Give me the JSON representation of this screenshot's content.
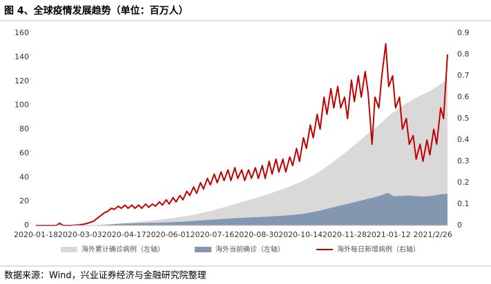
{
  "chart_data": {
    "type": "line",
    "title": "图 4、全球疫情发展趋势（单位：百万人）",
    "source": "数据来源：Wind，兴业证券经济与金融研究院整理",
    "grid": false,
    "legend": "bottom",
    "xlim": [
      "2020-01-18",
      "2021-03-13"
    ],
    "xticks": [
      "2020-01-18",
      "2020-03-03",
      "2020-04-17",
      "2020-06-01",
      "2020-07-16",
      "2020-08-30",
      "2020-10-14",
      "2020-11-28",
      "2021-01-12",
      {
        "value": "2021-02-26",
        "label": "2021/2/26"
      }
    ],
    "ylim": [
      0,
      160
    ],
    "yticks": [
      0,
      20,
      40,
      60,
      80,
      100,
      120,
      140,
      160
    ],
    "y2lim": [
      0,
      0.9
    ],
    "y2ticks": [
      0,
      0.1,
      0.2,
      0.3,
      0.4,
      0.5,
      0.6,
      0.7,
      0.8,
      0.9
    ],
    "x": [
      "2020-01-18",
      "2020-01-21",
      "2020-01-25",
      "2020-01-28",
      "2020-02-01",
      "2020-02-04",
      "2020-02-08",
      "2020-02-11",
      "2020-02-15",
      "2020-02-18",
      "2020-02-22",
      "2020-02-25",
      "2020-02-29",
      "2020-03-03",
      "2020-03-07",
      "2020-03-10",
      "2020-03-14",
      "2020-03-17",
      "2020-03-21",
      "2020-03-24",
      "2020-03-28",
      "2020-03-31",
      "2020-04-04",
      "2020-04-07",
      "2020-04-11",
      "2020-04-14",
      "2020-04-18",
      "2020-04-21",
      "2020-04-25",
      "2020-04-28",
      "2020-05-02",
      "2020-05-05",
      "2020-05-09",
      "2020-05-12",
      "2020-05-16",
      "2020-05-19",
      "2020-05-23",
      "2020-05-26",
      "2020-05-30",
      "2020-06-02",
      "2020-06-06",
      "2020-06-09",
      "2020-06-13",
      "2020-06-16",
      "2020-06-20",
      "2020-06-23",
      "2020-06-27",
      "2020-06-30",
      "2020-07-04",
      "2020-07-07",
      "2020-07-11",
      "2020-07-14",
      "2020-07-18",
      "2020-07-21",
      "2020-07-25",
      "2020-07-28",
      "2020-08-01",
      "2020-08-04",
      "2020-08-08",
      "2020-08-11",
      "2020-08-15",
      "2020-08-18",
      "2020-08-22",
      "2020-08-25",
      "2020-08-29",
      "2020-09-01",
      "2020-09-05",
      "2020-09-08",
      "2020-09-12",
      "2020-09-15",
      "2020-09-19",
      "2020-09-22",
      "2020-09-26",
      "2020-09-29",
      "2020-10-03",
      "2020-10-06",
      "2020-10-10",
      "2020-10-13",
      "2020-10-17",
      "2020-10-20",
      "2020-10-24",
      "2020-10-27",
      "2020-10-31",
      "2020-11-03",
      "2020-11-07",
      "2020-11-10",
      "2020-11-14",
      "2020-11-17",
      "2020-11-21",
      "2020-11-24",
      "2020-11-28",
      "2020-12-01",
      "2020-12-05",
      "2020-12-08",
      "2020-12-12",
      "2020-12-15",
      "2020-12-19",
      "2020-12-22",
      "2020-12-26",
      "2020-12-29",
      "2021-01-02",
      "2021-01-05",
      "2021-01-09",
      "2021-01-12",
      "2021-01-16",
      "2021-01-19",
      "2021-01-23",
      "2021-01-26",
      "2021-01-30",
      "2021-02-02",
      "2021-02-06",
      "2021-02-09",
      "2021-02-13",
      "2021-02-16",
      "2021-02-20",
      "2021-02-23",
      "2021-02-27",
      "2021-03-02",
      "2021-03-06",
      "2021-03-09",
      "2021-03-13"
    ],
    "series": [
      {
        "name": "海外累计确诊病例（左轴）",
        "type": "area",
        "color": "#d9d9d9",
        "axis": "y",
        "values": [
          0,
          0,
          0,
          0,
          0,
          0,
          0,
          0,
          0,
          0,
          0,
          0,
          0.01,
          0.02,
          0.03,
          0.05,
          0.1,
          0.15,
          0.28,
          0.4,
          0.6,
          0.8,
          1.05,
          1.3,
          1.6,
          1.8,
          2.1,
          2.3,
          2.6,
          2.8,
          3.1,
          3.3,
          3.6,
          3.8,
          4.2,
          4.4,
          4.8,
          5.0,
          5.5,
          5.8,
          6.2,
          6.5,
          7.0,
          7.3,
          7.9,
          8.3,
          8.9,
          9.4,
          10.1,
          10.6,
          11.4,
          12.0,
          12.9,
          13.5,
          14.4,
          15.1,
          16.0,
          16.7,
          17.7,
          18.4,
          19.4,
          20.1,
          21.1,
          21.8,
          22.8,
          23.5,
          24.6,
          25.3,
          26.4,
          27.2,
          28.4,
          29.2,
          30.4,
          31.2,
          32.5,
          33.4,
          34.8,
          35.8,
          37.3,
          38.5,
          40.3,
          41.6,
          43.6,
          45.1,
          47.3,
          49.0,
          51.4,
          53.2,
          55.7,
          57.6,
          60.2,
          62.1,
          64.8,
          66.8,
          69.6,
          71.6,
          74.5,
          76.6,
          79.0,
          81.0,
          83.6,
          85.7,
          88.8,
          90.9,
          93.6,
          95.4,
          97.8,
          99.4,
          101.6,
          103.0,
          104.9,
          106.2,
          107.9,
          109.1,
          110.7,
          112.0,
          113.8,
          115.3,
          117.6,
          119.4,
          122.0
        ]
      },
      {
        "name": "海外当前确诊（左轴）",
        "type": "area",
        "color": "#8497b0",
        "axis": "y",
        "values": [
          0,
          0,
          0,
          0,
          0,
          0,
          0,
          0,
          0,
          0,
          0,
          0,
          0.01,
          0.02,
          0.03,
          0.05,
          0.09,
          0.13,
          0.25,
          0.36,
          0.55,
          0.7,
          0.9,
          1.1,
          1.3,
          1.4,
          1.55,
          1.65,
          1.75,
          1.8,
          1.9,
          1.95,
          2.0,
          2.05,
          2.15,
          2.2,
          2.3,
          2.35,
          2.5,
          2.6,
          2.75,
          2.85,
          3.0,
          3.1,
          3.3,
          3.45,
          3.7,
          3.85,
          4.1,
          4.25,
          4.5,
          4.65,
          4.9,
          5.05,
          5.3,
          5.45,
          5.65,
          5.8,
          6.0,
          6.1,
          6.3,
          6.4,
          6.55,
          6.65,
          6.8,
          6.9,
          7.1,
          7.2,
          7.4,
          7.55,
          7.75,
          7.9,
          8.1,
          8.25,
          8.5,
          8.7,
          9.0,
          9.3,
          9.7,
          10.1,
          10.7,
          11.2,
          11.9,
          12.4,
          13.2,
          13.8,
          14.6,
          15.2,
          16.0,
          16.6,
          17.3,
          17.9,
          18.7,
          19.3,
          20.1,
          20.7,
          21.5,
          22.2,
          22.8,
          23.5,
          24.4,
          25.2,
          26.5,
          27.0,
          24.5,
          24.2,
          24.5,
          24.6,
          24.8,
          24.8,
          24.6,
          24.4,
          24.2,
          24.0,
          24.2,
          24.5,
          24.9,
          25.3,
          25.8,
          26.1,
          26.3
        ]
      },
      {
        "name": "海外每日新增病例（右轴）",
        "type": "line",
        "color": "#c00000",
        "axis": "y2",
        "values": [
          0,
          0,
          0,
          0,
          0,
          0,
          0,
          0.01,
          0,
          0,
          0,
          0.001,
          0.002,
          0.003,
          0.006,
          0.009,
          0.015,
          0.02,
          0.035,
          0.045,
          0.06,
          0.065,
          0.08,
          0.075,
          0.09,
          0.08,
          0.095,
          0.08,
          0.095,
          0.08,
          0.095,
          0.08,
          0.1,
          0.085,
          0.1,
          0.09,
          0.11,
          0.095,
          0.12,
          0.1,
          0.13,
          0.11,
          0.14,
          0.12,
          0.16,
          0.14,
          0.18,
          0.15,
          0.2,
          0.17,
          0.22,
          0.19,
          0.24,
          0.2,
          0.25,
          0.21,
          0.26,
          0.21,
          0.27,
          0.22,
          0.26,
          0.21,
          0.26,
          0.22,
          0.27,
          0.22,
          0.28,
          0.22,
          0.3,
          0.24,
          0.31,
          0.25,
          0.31,
          0.25,
          0.32,
          0.28,
          0.36,
          0.3,
          0.41,
          0.36,
          0.47,
          0.41,
          0.52,
          0.45,
          0.6,
          0.52,
          0.64,
          0.55,
          0.65,
          0.55,
          0.6,
          0.5,
          0.68,
          0.58,
          0.7,
          0.6,
          0.72,
          0.62,
          0.38,
          0.6,
          0.55,
          0.7,
          0.85,
          0.65,
          0.7,
          0.55,
          0.6,
          0.45,
          0.5,
          0.38,
          0.42,
          0.31,
          0.38,
          0.3,
          0.4,
          0.33,
          0.45,
          0.38,
          0.55,
          0.5,
          0.8
        ]
      }
    ]
  }
}
